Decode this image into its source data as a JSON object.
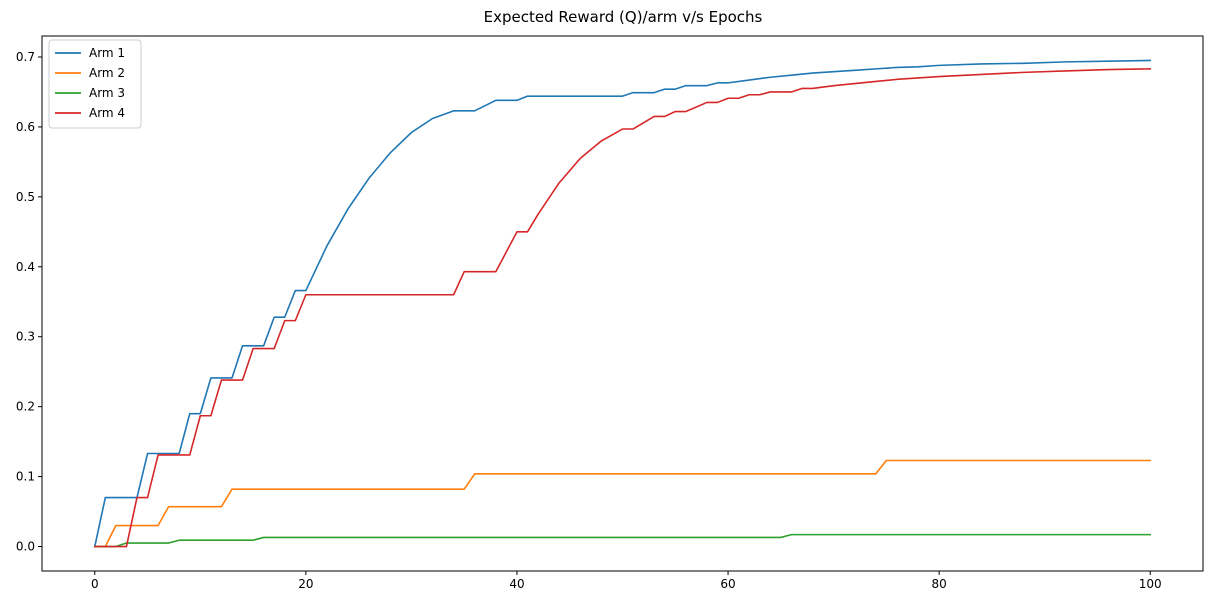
{
  "chart_data": {
    "type": "line",
    "title": "Expected Reward (Q)/arm v/s Epochs",
    "xlabel": "",
    "ylabel": "",
    "xlim": [
      -5,
      105
    ],
    "ylim": [
      -0.035,
      0.73
    ],
    "xticks": [
      0,
      20,
      40,
      60,
      80,
      100
    ],
    "yticks": [
      0.0,
      0.1,
      0.2,
      0.3,
      0.4,
      0.5,
      0.6,
      0.7
    ],
    "ytick_labels": [
      "0.0",
      "0.1",
      "0.2",
      "0.3",
      "0.4",
      "0.5",
      "0.6",
      "0.7"
    ],
    "grid": false,
    "legend": "top-left",
    "series": [
      {
        "name": "Arm 1",
        "color": "#1f77b4",
        "points": [
          [
            0,
            0.0
          ],
          [
            1,
            0.07
          ],
          [
            4,
            0.07
          ],
          [
            5,
            0.133
          ],
          [
            8,
            0.133
          ],
          [
            9,
            0.19
          ],
          [
            10,
            0.19
          ],
          [
            11,
            0.241
          ],
          [
            13,
            0.241
          ],
          [
            14,
            0.287
          ],
          [
            16,
            0.287
          ],
          [
            17,
            0.328
          ],
          [
            18,
            0.328
          ],
          [
            19,
            0.366
          ],
          [
            20,
            0.366
          ],
          [
            22,
            0.43
          ],
          [
            24,
            0.483
          ],
          [
            26,
            0.527
          ],
          [
            28,
            0.563
          ],
          [
            30,
            0.592
          ],
          [
            32,
            0.612
          ],
          [
            34,
            0.623
          ],
          [
            36,
            0.623
          ],
          [
            38,
            0.638
          ],
          [
            40,
            0.638
          ],
          [
            41,
            0.644
          ],
          [
            50,
            0.644
          ],
          [
            51,
            0.649
          ],
          [
            53,
            0.649
          ],
          [
            54,
            0.654
          ],
          [
            55,
            0.654
          ],
          [
            56,
            0.659
          ],
          [
            58,
            0.659
          ],
          [
            59,
            0.663
          ],
          [
            60,
            0.663
          ],
          [
            62,
            0.667
          ],
          [
            64,
            0.671
          ],
          [
            66,
            0.674
          ],
          [
            68,
            0.677
          ],
          [
            70,
            0.679
          ],
          [
            72,
            0.681
          ],
          [
            74,
            0.683
          ],
          [
            76,
            0.685
          ],
          [
            78,
            0.686
          ],
          [
            80,
            0.688
          ],
          [
            84,
            0.69
          ],
          [
            88,
            0.691
          ],
          [
            92,
            0.693
          ],
          [
            96,
            0.694
          ],
          [
            100,
            0.695
          ]
        ]
      },
      {
        "name": "Arm 2",
        "color": "#ff7f0e",
        "points": [
          [
            0,
            0.0
          ],
          [
            1,
            0.0
          ],
          [
            2,
            0.03
          ],
          [
            6,
            0.03
          ],
          [
            7,
            0.057
          ],
          [
            12,
            0.057
          ],
          [
            13,
            0.082
          ],
          [
            35,
            0.082
          ],
          [
            36,
            0.104
          ],
          [
            74,
            0.104
          ],
          [
            75,
            0.123
          ],
          [
            100,
            0.123
          ]
        ]
      },
      {
        "name": "Arm 3",
        "color": "#2ca02c",
        "points": [
          [
            0,
            0.0
          ],
          [
            2,
            0.0
          ],
          [
            3,
            0.005
          ],
          [
            7,
            0.005
          ],
          [
            8,
            0.009
          ],
          [
            15,
            0.009
          ],
          [
            16,
            0.013
          ],
          [
            65,
            0.013
          ],
          [
            66,
            0.017
          ],
          [
            100,
            0.017
          ]
        ]
      },
      {
        "name": "Arm 4",
        "color": "#d62728",
        "points": [
          [
            0,
            0.0
          ],
          [
            3,
            0.0
          ],
          [
            4,
            0.07
          ],
          [
            5,
            0.07
          ],
          [
            6,
            0.131
          ],
          [
            9,
            0.131
          ],
          [
            10,
            0.187
          ],
          [
            11,
            0.187
          ],
          [
            12,
            0.238
          ],
          [
            14,
            0.238
          ],
          [
            15,
            0.283
          ],
          [
            17,
            0.283
          ],
          [
            18,
            0.323
          ],
          [
            19,
            0.323
          ],
          [
            20,
            0.36
          ],
          [
            34,
            0.36
          ],
          [
            35,
            0.393
          ],
          [
            38,
            0.393
          ],
          [
            40,
            0.45
          ],
          [
            41,
            0.45
          ],
          [
            42,
            0.475
          ],
          [
            44,
            0.52
          ],
          [
            46,
            0.555
          ],
          [
            48,
            0.58
          ],
          [
            50,
            0.597
          ],
          [
            51,
            0.597
          ],
          [
            53,
            0.615
          ],
          [
            54,
            0.615
          ],
          [
            55,
            0.622
          ],
          [
            56,
            0.622
          ],
          [
            58,
            0.635
          ],
          [
            59,
            0.635
          ],
          [
            60,
            0.641
          ],
          [
            61,
            0.641
          ],
          [
            62,
            0.646
          ],
          [
            63,
            0.646
          ],
          [
            64,
            0.65
          ],
          [
            66,
            0.65
          ],
          [
            67,
            0.655
          ],
          [
            68,
            0.655
          ],
          [
            70,
            0.659
          ],
          [
            72,
            0.662
          ],
          [
            74,
            0.665
          ],
          [
            76,
            0.668
          ],
          [
            78,
            0.67
          ],
          [
            80,
            0.672
          ],
          [
            84,
            0.675
          ],
          [
            88,
            0.678
          ],
          [
            92,
            0.68
          ],
          [
            96,
            0.682
          ],
          [
            100,
            0.683
          ]
        ]
      }
    ]
  }
}
